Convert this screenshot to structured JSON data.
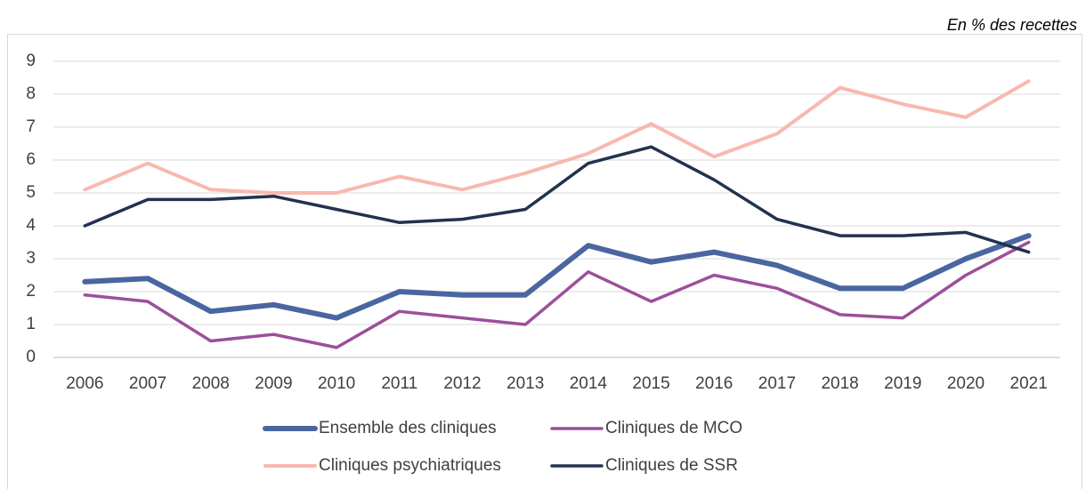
{
  "chart_data": {
    "type": "line",
    "annotation": "En % des recettes",
    "categories": [
      "2006",
      "2007",
      "2008",
      "2009",
      "2010",
      "2011",
      "2012",
      "2013",
      "2014",
      "2015",
      "2016",
      "2017",
      "2018",
      "2019",
      "2020",
      "2021"
    ],
    "series": [
      {
        "name": "Ensemble des cliniques",
        "color": "#4a66a0",
        "values": [
          2.3,
          2.4,
          1.4,
          1.6,
          1.2,
          2.0,
          1.9,
          1.9,
          3.4,
          2.9,
          3.2,
          2.8,
          2.1,
          2.1,
          3.0,
          3.7
        ]
      },
      {
        "name": "Cliniques de MCO",
        "color": "#9c4f9a",
        "values": [
          1.9,
          1.7,
          0.5,
          0.7,
          0.3,
          1.4,
          1.2,
          1.0,
          2.6,
          1.7,
          2.5,
          2.1,
          1.3,
          1.2,
          2.5,
          3.5
        ]
      },
      {
        "name": "Cliniques psychiatriques",
        "color": "#f8b8b0",
        "values": [
          5.1,
          5.9,
          5.1,
          5.0,
          5.0,
          5.5,
          5.1,
          5.6,
          6.2,
          7.1,
          6.1,
          6.8,
          8.2,
          7.7,
          7.3,
          8.4
        ]
      },
      {
        "name": "Cliniques de SSR",
        "color": "#22324f",
        "values": [
          4.0,
          4.8,
          4.8,
          4.9,
          4.5,
          4.1,
          4.2,
          4.5,
          5.9,
          6.4,
          5.4,
          4.2,
          3.7,
          3.7,
          3.8,
          3.2
        ]
      }
    ],
    "ylim": [
      0,
      9
    ],
    "yticks": [
      0,
      1,
      2,
      3,
      4,
      5,
      6,
      7,
      8,
      9
    ],
    "grid": true
  }
}
